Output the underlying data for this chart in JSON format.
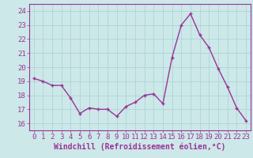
{
  "x": [
    0,
    1,
    2,
    3,
    4,
    5,
    6,
    7,
    8,
    9,
    10,
    11,
    12,
    13,
    14,
    15,
    16,
    17,
    18,
    19,
    20,
    21,
    22,
    23
  ],
  "y": [
    19.2,
    19.0,
    18.7,
    18.7,
    17.8,
    16.7,
    17.1,
    17.0,
    17.0,
    16.5,
    17.2,
    17.5,
    18.0,
    18.1,
    17.4,
    20.7,
    23.0,
    23.8,
    22.3,
    21.4,
    19.9,
    18.6,
    17.1,
    16.2
  ],
  "line_color": "#993399",
  "marker_color": "#993399",
  "bg_color": "#cce8e8",
  "grid_color": "#b0d4d4",
  "xlabel": "Windchill (Refroidissement éolien,°C)",
  "ylim": [
    15.5,
    24.5
  ],
  "xlim": [
    -0.5,
    23.5
  ],
  "yticks": [
    16,
    17,
    18,
    19,
    20,
    21,
    22,
    23,
    24
  ],
  "xticks": [
    0,
    1,
    2,
    3,
    4,
    5,
    6,
    7,
    8,
    9,
    10,
    11,
    12,
    13,
    14,
    15,
    16,
    17,
    18,
    19,
    20,
    21,
    22,
    23
  ],
  "xlabel_fontsize": 7.0,
  "tick_fontsize": 6.5,
  "line_width": 1.0,
  "marker_size": 2.5
}
